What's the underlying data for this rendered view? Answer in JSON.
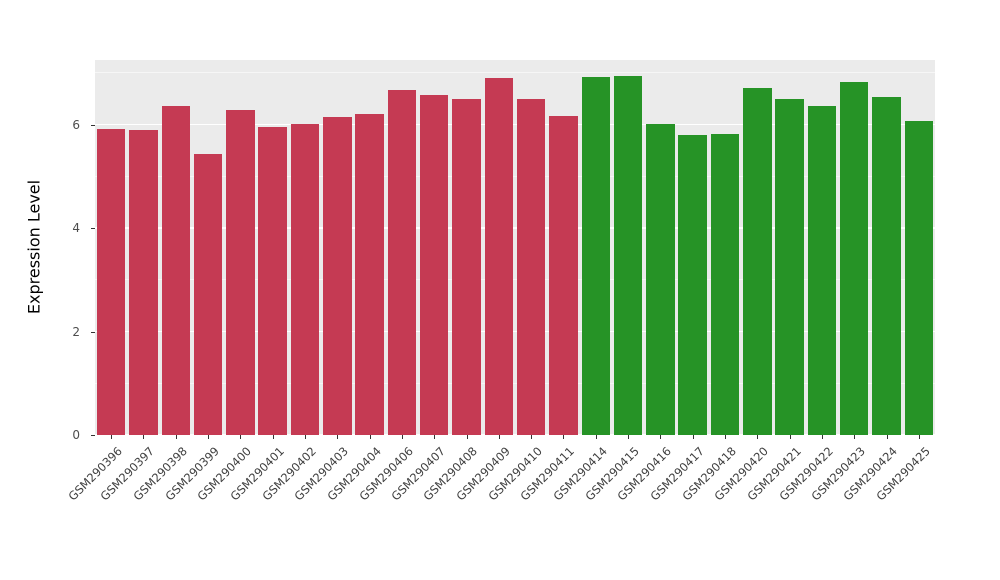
{
  "chart_data": {
    "type": "bar",
    "title": "",
    "xlabel": "",
    "ylabel": "Expression Level",
    "ylim": [
      0,
      7.25
    ],
    "yticks": [
      0,
      2,
      4,
      6
    ],
    "minor_ticks": [
      1,
      3,
      5,
      7
    ],
    "grid": true,
    "legend_position": "none",
    "categories": [
      "GSM290396",
      "GSM290397",
      "GSM290398",
      "GSM290399",
      "GSM290400",
      "GSM290401",
      "GSM290402",
      "GSM290403",
      "GSM290404",
      "GSM290406",
      "GSM290407",
      "GSM290408",
      "GSM290409",
      "GSM290410",
      "GSM290411",
      "GSM290414",
      "GSM290415",
      "GSM290416",
      "GSM290417",
      "GSM290418",
      "GSM290420",
      "GSM290421",
      "GSM290422",
      "GSM290423",
      "GSM290424",
      "GSM290425"
    ],
    "values": [
      5.91,
      5.9,
      6.36,
      5.43,
      6.28,
      5.96,
      6.01,
      6.15,
      6.2,
      6.67,
      6.57,
      6.5,
      6.9,
      6.5,
      6.17,
      6.93,
      6.95,
      6.02,
      5.8,
      5.82,
      6.7,
      6.5,
      6.37,
      6.83,
      6.53,
      6.08
    ],
    "groups": [
      "group1",
      "group1",
      "group1",
      "group1",
      "group1",
      "group1",
      "group1",
      "group1",
      "group1",
      "group1",
      "group1",
      "group1",
      "group1",
      "group1",
      "group1",
      "group2",
      "group2",
      "group2",
      "group2",
      "group2",
      "group2",
      "group2",
      "group2",
      "group2",
      "group2",
      "group2"
    ],
    "group_colors": {
      "group1": "#C53A53",
      "group2": "#269326"
    }
  },
  "colors": {
    "panel_background": "#EBEBEB",
    "gridline": "#FFFFFF",
    "tick_text": "#4D4D4D",
    "axis_title": "#000000"
  }
}
